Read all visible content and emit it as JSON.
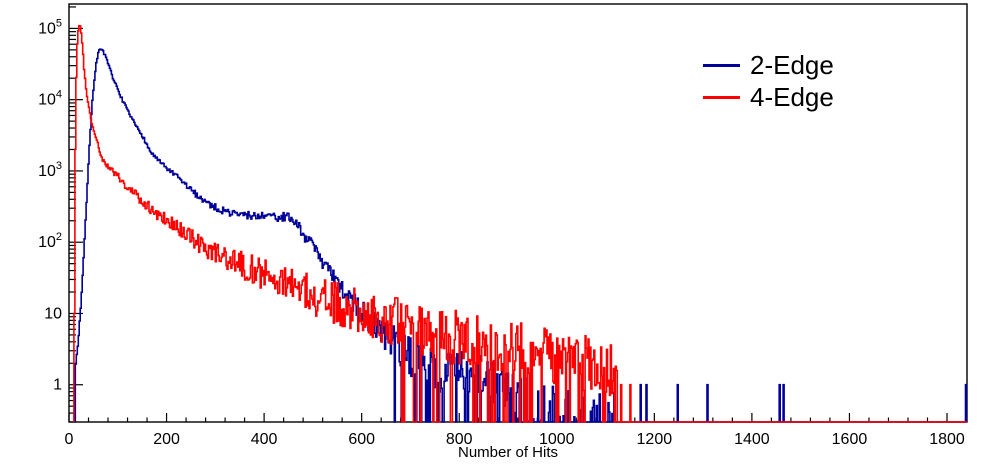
{
  "figure": {
    "background": "#ffffff",
    "frame_color": "#000000",
    "text_color": "#000000"
  },
  "legend": {
    "position": "top-right",
    "items": [
      {
        "label": "2-Edge",
        "color": "#000099"
      },
      {
        "label": "4-Edge",
        "color": "#ff0000"
      }
    ]
  },
  "axes": {
    "x_label": "Number of Hits",
    "x_ticks": [
      {
        "value": 0,
        "label": "0"
      },
      {
        "value": 200,
        "label": "200"
      },
      {
        "value": 400,
        "label": "400"
      },
      {
        "value": 600,
        "label": "600"
      },
      {
        "value": 800,
        "label": "800"
      },
      {
        "value": 1000,
        "label": "1000"
      },
      {
        "value": 1200,
        "label": "1200"
      },
      {
        "value": 1400,
        "label": "1400"
      },
      {
        "value": 1600,
        "label": "1600"
      },
      {
        "value": 1800,
        "label": "1800"
      }
    ],
    "x_minor_step": 40,
    "y_ticks": [
      {
        "value": 1,
        "base": "1",
        "exp": ""
      },
      {
        "value": 10,
        "base": "10",
        "exp": ""
      },
      {
        "value": 100,
        "base": "10",
        "exp": "2"
      },
      {
        "value": 1000,
        "base": "10",
        "exp": "3"
      },
      {
        "value": 10000,
        "base": "10",
        "exp": "4"
      },
      {
        "value": 100000,
        "base": "10",
        "exp": "5"
      }
    ]
  },
  "chart_data": {
    "type": "line",
    "title": "",
    "xlabel": "Number of Hits",
    "ylabel": "",
    "y_scale": "log",
    "x_range": [
      0,
      1841
    ],
    "y_range": [
      0.3,
      220000
    ],
    "grid": false,
    "legend_position": "top-right",
    "bin_width": 2,
    "seed": 7,
    "series": [
      {
        "name": "2-Edge",
        "color": "#000099",
        "peak": {
          "x": 62,
          "y": 53000
        },
        "first_bin": 13,
        "last_bin": 1124,
        "anchors": [
          [
            13,
            2
          ],
          [
            18,
            4
          ],
          [
            24,
            15
          ],
          [
            30,
            80
          ],
          [
            36,
            500
          ],
          [
            42,
            3000
          ],
          [
            48,
            12000
          ],
          [
            54,
            30000
          ],
          [
            60,
            48000
          ],
          [
            64,
            53000
          ],
          [
            68,
            50000
          ],
          [
            74,
            40000
          ],
          [
            82,
            28000
          ],
          [
            92,
            18000
          ],
          [
            102,
            12500
          ],
          [
            112,
            8800
          ],
          [
            124,
            6000
          ],
          [
            136,
            4300
          ],
          [
            150,
            3100
          ],
          [
            165,
            1900
          ],
          [
            180,
            1450
          ],
          [
            195,
            1150
          ],
          [
            210,
            950
          ],
          [
            225,
            780
          ],
          [
            240,
            620
          ],
          [
            255,
            500
          ],
          [
            270,
            415
          ],
          [
            285,
            350
          ],
          [
            300,
            305
          ],
          [
            320,
            270
          ],
          [
            340,
            250
          ],
          [
            360,
            240
          ],
          [
            380,
            235
          ],
          [
            400,
            230
          ],
          [
            420,
            228
          ],
          [
            440,
            225
          ],
          [
            455,
            210
          ],
          [
            465,
            185
          ],
          [
            475,
            150
          ],
          [
            485,
            115
          ],
          [
            495,
            95
          ],
          [
            505,
            78
          ],
          [
            515,
            60
          ],
          [
            525,
            45
          ],
          [
            535,
            36
          ],
          [
            545,
            29
          ],
          [
            555,
            23
          ],
          [
            565,
            19
          ],
          [
            575,
            15.5
          ],
          [
            585,
            13
          ],
          [
            595,
            11
          ],
          [
            605,
            9.5
          ],
          [
            620,
            7.5
          ],
          [
            635,
            6
          ],
          [
            650,
            4.8
          ],
          [
            665,
            3.8
          ],
          [
            680,
            3.1
          ],
          [
            700,
            2.5
          ],
          [
            720,
            2
          ],
          [
            740,
            1.7
          ],
          [
            760,
            1.5
          ],
          [
            790,
            1.6
          ],
          [
            830,
            1.5
          ],
          [
            870,
            1.1
          ],
          [
            900,
            0.8
          ],
          [
            950,
            0.6
          ],
          [
            1000,
            0.5
          ],
          [
            1060,
            0.42
          ],
          [
            1124,
            0.38
          ]
        ],
        "noise_dex": [
          [
            0,
            0.01
          ],
          [
            100,
            0.02
          ],
          [
            200,
            0.03
          ],
          [
            300,
            0.05
          ],
          [
            400,
            0.06
          ],
          [
            480,
            0.08
          ],
          [
            550,
            0.12
          ],
          [
            620,
            0.2
          ],
          [
            700,
            0.28
          ],
          [
            800,
            0.3
          ],
          [
            1124,
            0.32
          ]
        ],
        "gap_prob": [
          [
            0,
            0
          ],
          [
            650,
            0
          ],
          [
            680,
            0.15
          ],
          [
            720,
            0.3
          ],
          [
            780,
            0.12
          ],
          [
            870,
            0.35
          ],
          [
            950,
            0.55
          ],
          [
            1060,
            0.7
          ],
          [
            1124,
            0.75
          ]
        ],
        "spikes": [
          [
            1171,
            1
          ],
          [
            1183,
            1
          ],
          [
            1247,
            1
          ],
          [
            1308,
            1
          ],
          [
            1456,
            1
          ],
          [
            1464,
            1
          ],
          [
            1838,
            1
          ]
        ]
      },
      {
        "name": "4-Edge",
        "color": "#ff0000",
        "peak": {
          "x": 20,
          "y": 110000
        },
        "first_bin": 10,
        "last_bin": 1124,
        "anchors": [
          [
            10,
            10
          ],
          [
            12,
            2000
          ],
          [
            14,
            20000
          ],
          [
            16,
            60000
          ],
          [
            18,
            95000
          ],
          [
            20,
            110000
          ],
          [
            22,
            105000
          ],
          [
            24,
            85000
          ],
          [
            26,
            62000
          ],
          [
            28,
            42000
          ],
          [
            30,
            27000
          ],
          [
            34,
            14500
          ],
          [
            38,
            9000
          ],
          [
            44,
            5400
          ],
          [
            50,
            3700
          ],
          [
            58,
            2500
          ],
          [
            64,
            1600
          ],
          [
            76,
            1200
          ],
          [
            88,
            1000
          ],
          [
            100,
            820
          ],
          [
            115,
            640
          ],
          [
            130,
            510
          ],
          [
            150,
            375
          ],
          [
            170,
            285
          ],
          [
            190,
            225
          ],
          [
            210,
            180
          ],
          [
            230,
            145
          ],
          [
            250,
            115
          ],
          [
            270,
            88
          ],
          [
            290,
            76
          ],
          [
            310,
            66
          ],
          [
            330,
            57
          ],
          [
            350,
            49
          ],
          [
            370,
            43
          ],
          [
            390,
            37
          ],
          [
            410,
            32
          ],
          [
            430,
            28
          ],
          [
            450,
            25
          ],
          [
            470,
            22
          ],
          [
            490,
            19
          ],
          [
            510,
            17
          ],
          [
            530,
            15
          ],
          [
            550,
            13.5
          ],
          [
            570,
            12
          ],
          [
            590,
            11
          ],
          [
            610,
            10
          ],
          [
            640,
            8.5
          ],
          [
            670,
            7.5
          ],
          [
            700,
            6.5
          ],
          [
            740,
            5.5
          ],
          [
            780,
            4.8
          ],
          [
            820,
            4.2
          ],
          [
            860,
            3.7
          ],
          [
            900,
            3.2
          ],
          [
            950,
            2.8
          ],
          [
            1000,
            2.4
          ],
          [
            1050,
            2.0
          ],
          [
            1100,
            1.7
          ],
          [
            1124,
            1.5
          ]
        ],
        "noise_dex": [
          [
            0,
            0.01
          ],
          [
            60,
            0.02
          ],
          [
            100,
            0.05
          ],
          [
            200,
            0.1
          ],
          [
            300,
            0.15
          ],
          [
            400,
            0.22
          ],
          [
            500,
            0.28
          ],
          [
            600,
            0.32
          ],
          [
            700,
            0.36
          ],
          [
            900,
            0.4
          ],
          [
            1124,
            0.42
          ]
        ],
        "gap_prob": [
          [
            0,
            0
          ],
          [
            610,
            0
          ],
          [
            630,
            0.03
          ],
          [
            700,
            0.08
          ],
          [
            800,
            0.12
          ],
          [
            900,
            0.16
          ],
          [
            1000,
            0.2
          ],
          [
            1124,
            0.22
          ]
        ],
        "spikes": [
          [
            1131,
            1
          ],
          [
            1150,
            1
          ]
        ]
      }
    ]
  }
}
